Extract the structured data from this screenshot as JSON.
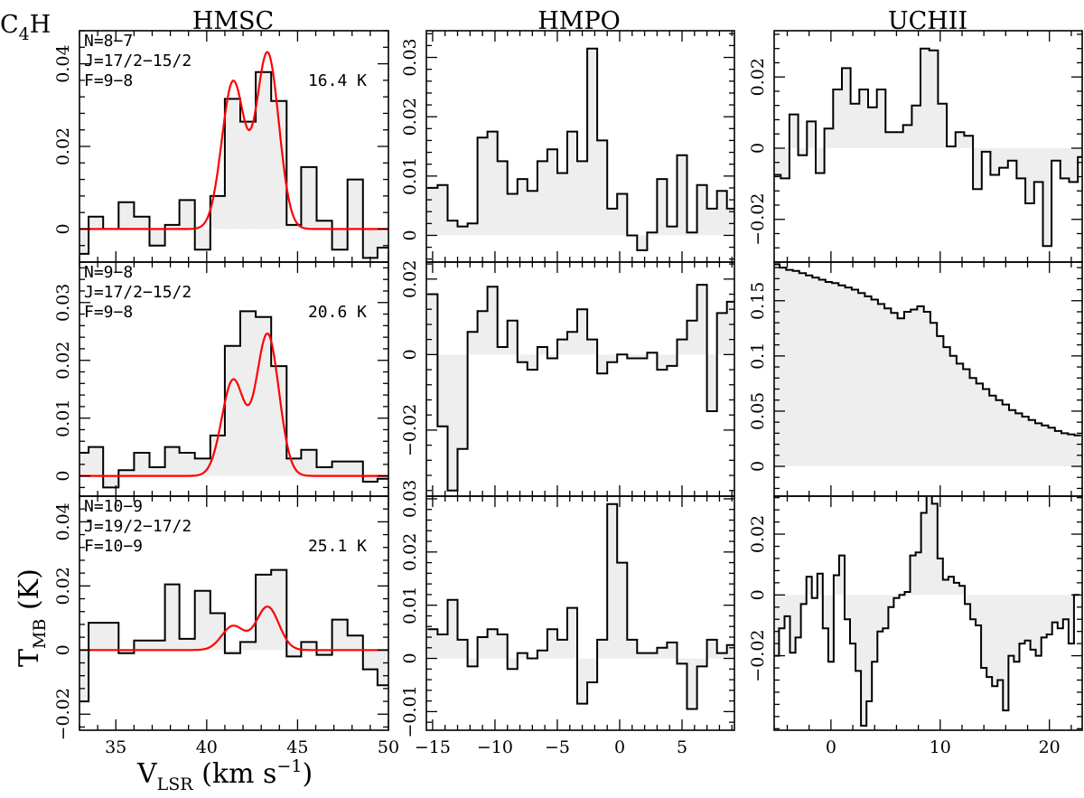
{
  "figure": {
    "molecule": "C",
    "molecule_sub": "4",
    "molecule_end": "H",
    "ylabel": "T",
    "ylabel_sub": "MB",
    "ylabel_unit": " (K)",
    "xlabel": "V",
    "xlabel_sub": "LSR",
    "xlabel_unit": " (km s",
    "xlabel_exp": "−1",
    "xlabel_close": ")"
  },
  "colors": {
    "spectrum": "#000000",
    "fill": "#eeeeee",
    "model": "#ff0000"
  },
  "chart_data": [
    {
      "type": "line",
      "title": "HMSC",
      "column": 0,
      "row": 0,
      "xlim": [
        33,
        50
      ],
      "ylim": [
        -0.008,
        0.048
      ],
      "yticks": [
        0,
        0.02,
        0.04
      ],
      "ytick_labels": [
        "0",
        "0.02",
        "0.04"
      ],
      "xticks": [
        35,
        40,
        45,
        50
      ],
      "xtick_labels": [],
      "annotation": [
        "N=8−7",
        "J=17/2−15/2",
        "F=9−8"
      ],
      "temperature": "16.4 K",
      "x": [
        33.1,
        33.9,
        34.7,
        35.6,
        36.4,
        37.3,
        38.1,
        38.9,
        39.8,
        40.6,
        41.4,
        42.3,
        43.1,
        44.0,
        44.8,
        45.6,
        46.5,
        47.3,
        48.2,
        49.0,
        49.8
      ],
      "values": [
        -0.006,
        0.003,
        0.0,
        0.0065,
        0.003,
        -0.004,
        0.001,
        0.007,
        -0.005,
        0.008,
        0.0315,
        0.026,
        0.038,
        0.031,
        0.001,
        0.015,
        0.002,
        -0.005,
        0.012,
        -0.007,
        -0.0045
      ],
      "model": {
        "name": "model fit",
        "mu1": 41.45,
        "a1": 0.0355,
        "mu2": 43.35,
        "a2": 0.0425,
        "sigma": 0.62
      }
    },
    {
      "type": "line",
      "title": "HMSC",
      "column": 0,
      "row": 1,
      "xlim": [
        33,
        50
      ],
      "ylim": [
        -0.0035,
        0.037
      ],
      "yticks": [
        0,
        0.01,
        0.02,
        0.03
      ],
      "ytick_labels": [
        "0",
        "0.01",
        "0.02",
        "0.03"
      ],
      "xticks": [
        35,
        40,
        45,
        50
      ],
      "xtick_labels": [],
      "annotation": [
        "N=9−8",
        "J=17/2−15/2",
        "F=9−8"
      ],
      "temperature": "20.6 K",
      "x": [
        33.1,
        33.9,
        34.7,
        35.6,
        36.4,
        37.3,
        38.1,
        38.9,
        39.8,
        40.6,
        41.4,
        42.3,
        43.1,
        44.0,
        44.8,
        45.6,
        46.5,
        47.3,
        48.2,
        49.0,
        49.8
      ],
      "values": [
        0.004,
        0.005,
        -0.002,
        0.001,
        0.004,
        0.0015,
        0.005,
        0.004,
        0.003,
        0.007,
        0.0225,
        0.0285,
        0.0275,
        0.019,
        0.003,
        0.0045,
        0.0015,
        0.0025,
        0.0025,
        -0.001,
        -0.0005
      ],
      "model": {
        "name": "model fit",
        "mu1": 41.45,
        "a1": 0.0165,
        "mu2": 43.35,
        "a2": 0.0245,
        "sigma": 0.62
      }
    },
    {
      "type": "line",
      "title": "HMSC",
      "column": 0,
      "row": 2,
      "xlim": [
        33,
        50
      ],
      "ylim": [
        -0.025,
        0.048
      ],
      "yticks": [
        -0.02,
        0,
        0.02,
        0.04
      ],
      "ytick_labels": [
        "−0.02",
        "0",
        "0.02",
        "0.04"
      ],
      "xticks": [
        35,
        40,
        45,
        50
      ],
      "xtick_labels": [
        "35",
        "40",
        "45",
        "50"
      ],
      "annotation": [
        "N=10−9",
        "J=19/2−17/2",
        "F=10−9"
      ],
      "temperature": "25.1 K",
      "x": [
        33.1,
        33.9,
        34.7,
        35.6,
        36.4,
        37.3,
        38.1,
        38.9,
        39.8,
        40.6,
        41.4,
        42.3,
        43.1,
        44.0,
        44.8,
        45.6,
        46.5,
        47.3,
        48.2,
        49.0,
        49.8
      ],
      "values": [
        -0.016,
        0.0085,
        0.0085,
        -0.001,
        0.003,
        0.003,
        0.0205,
        0.0035,
        0.0185,
        0.0115,
        -0.001,
        0.0025,
        0.0235,
        0.025,
        -0.002,
        0.0025,
        -0.0015,
        0.0095,
        0.0045,
        -0.006,
        -0.011
      ],
      "model": {
        "name": "model fit",
        "mu1": 41.45,
        "a1": 0.0075,
        "mu2": 43.35,
        "a2": 0.0135,
        "sigma": 0.62
      }
    },
    {
      "type": "line",
      "title": "HMPO",
      "column": 1,
      "row": 0,
      "xlim": [
        -15.5,
        9.2
      ],
      "ylim": [
        -0.0045,
        0.0345
      ],
      "yticks": [
        0,
        0.01,
        0.02,
        0.03
      ],
      "ytick_labels": [
        "0",
        "0.01",
        "0.02",
        "0.03"
      ],
      "xticks": [
        -15,
        -10,
        -5,
        0,
        5
      ],
      "xtick_labels": [],
      "x": [
        -15.0,
        -14.2,
        -13.4,
        -12.6,
        -11.8,
        -11.0,
        -10.2,
        -9.4,
        -8.6,
        -7.8,
        -7.0,
        -6.2,
        -5.4,
        -4.6,
        -3.8,
        -3.0,
        -2.2,
        -1.4,
        -0.6,
        0.2,
        1.0,
        1.8,
        2.6,
        3.4,
        4.2,
        5.0,
        5.8,
        6.6,
        7.4,
        8.2,
        9.0
      ],
      "values": [
        0.008,
        0.0085,
        0.0025,
        0.0015,
        0.002,
        0.0165,
        0.0175,
        0.0125,
        0.007,
        0.0095,
        0.0075,
        0.0125,
        0.0145,
        0.0105,
        0.0175,
        0.0125,
        0.0315,
        0.016,
        0.0045,
        0.007,
        0.0,
        -0.0025,
        0.0005,
        0.0095,
        0.0015,
        0.0135,
        0.0005,
        0.0085,
        0.0045,
        0.0075,
        0.0045
      ]
    },
    {
      "type": "line",
      "title": "HMPO",
      "column": 1,
      "row": 1,
      "xlim": [
        -15.5,
        9.2
      ],
      "ylim": [
        -0.0375,
        0.0245
      ],
      "yticks": [
        -0.02,
        0,
        0.02
      ],
      "ytick_labels": [
        "−0.02",
        "0",
        "0.02"
      ],
      "xticks": [
        -15,
        -10,
        -5,
        0,
        5
      ],
      "xtick_labels": [],
      "x": [
        -15.0,
        -14.2,
        -13.4,
        -12.6,
        -11.8,
        -11.0,
        -10.2,
        -9.4,
        -8.6,
        -7.8,
        -7.0,
        -6.2,
        -5.4,
        -4.6,
        -3.8,
        -3.0,
        -2.2,
        -1.4,
        -0.6,
        0.2,
        1.0,
        1.8,
        2.6,
        3.4,
        4.2,
        5.0,
        5.8,
        6.6,
        7.4,
        8.2,
        9.0
      ],
      "values": [
        0.016,
        -0.019,
        -0.036,
        -0.025,
        0.006,
        0.0115,
        0.018,
        0.002,
        0.009,
        -0.002,
        -0.004,
        0.002,
        -0.001,
        0.004,
        0.006,
        0.012,
        0.004,
        -0.005,
        -0.002,
        0.0,
        -0.001,
        -0.001,
        0.0005,
        -0.004,
        -0.003,
        0.004,
        0.009,
        0.0185,
        -0.015,
        0.011,
        0.014
      ]
    },
    {
      "type": "line",
      "title": "HMPO",
      "column": 1,
      "row": 2,
      "xlim": [
        -15.5,
        9.2
      ],
      "ylim": [
        -0.0135,
        0.0305
      ],
      "yticks": [
        -0.01,
        0,
        0.01,
        0.02,
        0.03
      ],
      "ytick_labels": [
        "−0.01",
        "0",
        "0.01",
        "0.02",
        "0.03"
      ],
      "xticks": [
        -15,
        -10,
        -5,
        0,
        5
      ],
      "xtick_labels": [
        "−15",
        "−10",
        "−5",
        "0",
        "5"
      ],
      "x": [
        -15.0,
        -14.2,
        -13.4,
        -12.6,
        -11.8,
        -11.0,
        -10.2,
        -9.4,
        -8.6,
        -7.8,
        -7.0,
        -6.2,
        -5.4,
        -4.6,
        -3.8,
        -3.0,
        -2.2,
        -1.4,
        -0.6,
        0.2,
        1.0,
        1.8,
        2.6,
        3.4,
        4.2,
        5.0,
        5.8,
        6.6,
        7.4,
        8.2,
        9.0
      ],
      "values": [
        0.0055,
        0.0045,
        0.011,
        0.0035,
        -0.0015,
        0.004,
        0.0055,
        0.0045,
        -0.002,
        0.001,
        0.0,
        0.0015,
        0.0055,
        0.0035,
        0.0095,
        -0.0085,
        -0.0045,
        0.0035,
        0.029,
        0.018,
        0.0035,
        0.001,
        0.001,
        0.002,
        0.003,
        -0.001,
        -0.0095,
        -0.0015,
        0.0035,
        0.001,
        0.0025
      ]
    },
    {
      "type": "line",
      "title": "UCHII",
      "column": 2,
      "row": 0,
      "xlim": [
        -5.2,
        23
      ],
      "ylim": [
        -0.032,
        0.033
      ],
      "yticks": [
        -0.02,
        0,
        0.02
      ],
      "ytick_labels": [
        "−0.02",
        "0",
        "0.02"
      ],
      "xticks": [
        0,
        10,
        20
      ],
      "xtick_labels": [],
      "x": [
        -5.0,
        -4.2,
        -3.4,
        -2.6,
        -1.8,
        -1.0,
        -0.2,
        0.6,
        1.4,
        2.2,
        3.0,
        3.8,
        4.6,
        5.4,
        6.2,
        7.0,
        7.8,
        8.6,
        9.4,
        10.2,
        11.0,
        11.8,
        12.6,
        13.4,
        14.2,
        15.0,
        15.8,
        16.6,
        17.4,
        18.2,
        19.0,
        19.8,
        20.6,
        21.4,
        22.2,
        23.0
      ],
      "values": [
        -0.0075,
        -0.0085,
        0.0095,
        -0.002,
        0.0075,
        -0.007,
        0.0055,
        0.0165,
        0.0225,
        0.0125,
        0.0165,
        0.0115,
        0.0165,
        0.0045,
        0.0045,
        0.0065,
        0.012,
        0.028,
        0.0275,
        0.0125,
        0.0005,
        0.0045,
        0.0035,
        -0.0115,
        -0.001,
        -0.0075,
        -0.0055,
        -0.0035,
        -0.0085,
        -0.0155,
        -0.0095,
        -0.0275,
        -0.0035,
        -0.0085,
        -0.0095,
        -0.0025
      ]
    },
    {
      "type": "line",
      "title": "UCHII",
      "column": 2,
      "row": 1,
      "xlim": [
        -5.2,
        23
      ],
      "ylim": [
        -0.027,
        0.185
      ],
      "yticks": [
        0,
        0.05,
        0.1,
        0.15
      ],
      "ytick_labels": [
        "0",
        "0.05",
        "0.1",
        "0.15"
      ],
      "xticks": [
        0,
        10,
        20
      ],
      "xtick_labels": [],
      "x": [
        -5.0,
        -4.4,
        -3.8,
        -3.2,
        -2.6,
        -2.0,
        -1.4,
        -0.8,
        -0.2,
        0.4,
        1.0,
        1.6,
        2.2,
        2.8,
        3.4,
        4.0,
        4.6,
        5.2,
        5.8,
        6.4,
        7.0,
        7.6,
        8.2,
        8.8,
        9.4,
        10.0,
        10.6,
        11.2,
        11.8,
        12.4,
        13.0,
        13.6,
        14.2,
        14.8,
        15.4,
        16.0,
        16.6,
        17.2,
        17.8,
        18.4,
        19.0,
        19.6,
        20.2,
        20.8,
        21.4,
        22.0,
        22.6
      ],
      "values": [
        0.183,
        0.18,
        0.178,
        0.177,
        0.175,
        0.173,
        0.171,
        0.169,
        0.167,
        0.166,
        0.164,
        0.162,
        0.16,
        0.157,
        0.154,
        0.151,
        0.147,
        0.143,
        0.139,
        0.134,
        0.14,
        0.142,
        0.145,
        0.14,
        0.13,
        0.118,
        0.108,
        0.1,
        0.093,
        0.088,
        0.08,
        0.075,
        0.07,
        0.064,
        0.06,
        0.056,
        0.051,
        0.048,
        0.045,
        0.042,
        0.039,
        0.037,
        0.035,
        0.032,
        0.03,
        0.029,
        0.028
      ]
    },
    {
      "type": "line",
      "title": "UCHII",
      "column": 2,
      "row": 2,
      "xlim": [
        -5.2,
        23
      ],
      "ylim": [
        -0.0445,
        0.0325
      ],
      "yticks": [
        -0.02,
        0,
        0.02
      ],
      "ytick_labels": [
        "−0.02",
        "0",
        "0.02"
      ],
      "xticks": [
        0,
        10,
        20
      ],
      "xtick_labels": [
        "0",
        "10",
        "20"
      ],
      "x": [
        -5.0,
        -4.5,
        -4.0,
        -3.5,
        -3.0,
        -2.5,
        -2.0,
        -1.5,
        -1.0,
        -0.5,
        0.0,
        0.5,
        1.0,
        1.5,
        2.0,
        2.5,
        3.0,
        3.5,
        4.0,
        4.5,
        5.0,
        5.5,
        6.0,
        6.5,
        7.0,
        7.5,
        8.0,
        8.5,
        9.0,
        9.5,
        10.0,
        10.5,
        11.0,
        11.5,
        12.0,
        12.5,
        13.0,
        13.5,
        14.0,
        14.5,
        15.0,
        15.5,
        16.0,
        16.5,
        17.0,
        17.5,
        18.0,
        18.5,
        19.0,
        19.5,
        20.0,
        20.5,
        21.0,
        21.5,
        22.0,
        22.5
      ],
      "values": [
        -0.02,
        -0.011,
        -0.007,
        -0.019,
        -0.014,
        -0.003,
        0.006,
        -0.001,
        0.007,
        -0.011,
        -0.022,
        0.0065,
        0.013,
        -0.008,
        -0.016,
        -0.025,
        -0.043,
        -0.035,
        -0.022,
        -0.012,
        -0.011,
        -0.004,
        -0.001,
        0.0,
        0.001,
        0.013,
        0.014,
        0.027,
        0.033,
        0.03,
        0.012,
        0.005,
        0.006,
        0.004,
        0.003,
        -0.003,
        -0.008,
        -0.01,
        -0.024,
        -0.027,
        -0.03,
        -0.028,
        -0.038,
        -0.02,
        -0.022,
        -0.016,
        -0.015,
        -0.018,
        -0.02,
        -0.014,
        -0.013,
        -0.009,
        -0.011,
        -0.008,
        -0.016,
        0.0
      ]
    }
  ]
}
